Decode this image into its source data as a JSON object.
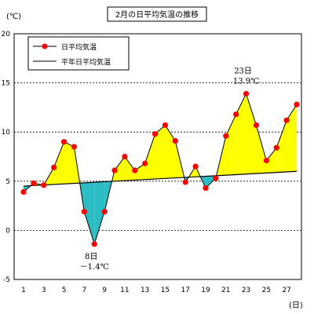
{
  "chart_data": {
    "type": "line",
    "title": "2月の日平均気温の推移",
    "y_unit": "(℃)",
    "x_unit": "(日)",
    "ylim": [
      -5,
      20
    ],
    "y_ticks": [
      "20",
      "15",
      "10",
      "5",
      "0",
      "-5"
    ],
    "y_tick_values": [
      20,
      15,
      10,
      5,
      0,
      -5
    ],
    "x_ticks": [
      "1",
      "3",
      "5",
      "7",
      "9",
      "11",
      "13",
      "15",
      "17",
      "19",
      "21",
      "23",
      "25",
      "27"
    ],
    "x_tick_values": [
      1,
      3,
      5,
      7,
      9,
      11,
      13,
      15,
      17,
      19,
      21,
      23,
      25,
      27
    ],
    "xlim": [
      1,
      28
    ],
    "grid": "horizontal dashed",
    "legend_position": "top-left",
    "series": [
      {
        "name": "日平均気温",
        "color": "#ff0000",
        "x": [
          1,
          2,
          3,
          4,
          5,
          6,
          7,
          8,
          9,
          10,
          11,
          12,
          13,
          14,
          15,
          16,
          17,
          18,
          19,
          20,
          21,
          22,
          23,
          24,
          25,
          26,
          27,
          28
        ],
        "values": [
          3.9,
          4.8,
          4.6,
          6.4,
          9.0,
          8.5,
          1.9,
          -1.4,
          1.9,
          6.1,
          7.5,
          6.1,
          6.8,
          9.8,
          10.7,
          9.1,
          4.9,
          6.5,
          4.3,
          5.3,
          9.6,
          11.8,
          13.9,
          10.7,
          7.1,
          8.4,
          11.2,
          12.8
        ]
      },
      {
        "name": "平年日平均気温",
        "color": "#000000",
        "x": [
          1,
          28
        ],
        "values": [
          4.5,
          6.0
        ]
      }
    ],
    "fill_above_color": "#ffff00",
    "fill_below_color": "#2bbcc4",
    "annotations": [
      {
        "x": 23,
        "line1": "23日",
        "line2": "13.9℃"
      },
      {
        "x": 8,
        "line1": "8日",
        "line2": "－1.4℃"
      }
    ]
  }
}
